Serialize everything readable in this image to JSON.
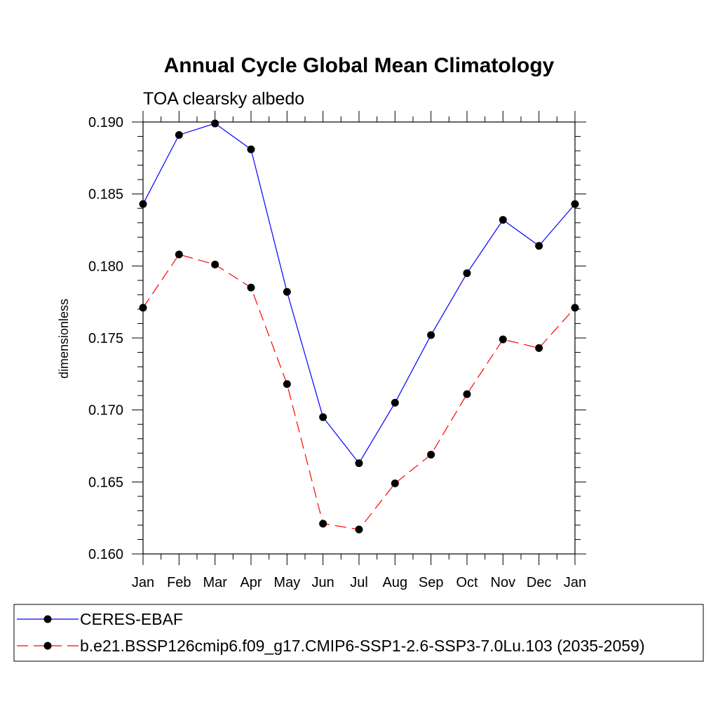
{
  "chart_data": {
    "type": "line",
    "title": "Annual Cycle Global Mean Climatology",
    "subtitle": "TOA clearsky albedo",
    "xlabel": "",
    "ylabel": "dimensionless",
    "categories": [
      "Jan",
      "Feb",
      "Mar",
      "Apr",
      "May",
      "Jun",
      "Jul",
      "Aug",
      "Sep",
      "Oct",
      "Nov",
      "Dec",
      "Jan"
    ],
    "ylim": [
      0.16,
      0.19
    ],
    "yticks": [
      "0.160",
      "0.165",
      "0.170",
      "0.175",
      "0.180",
      "0.185",
      "0.190"
    ],
    "grid": false,
    "legend_position": "bottom",
    "series": [
      {
        "name": "CERES-EBAF",
        "color": "#0000ff",
        "dash": "solid",
        "marker": "filled-circle",
        "values": [
          0.1843,
          0.1891,
          0.1899,
          0.1881,
          0.1782,
          0.1695,
          0.1663,
          0.1705,
          0.1752,
          0.1795,
          0.1832,
          0.1814,
          0.1843
        ]
      },
      {
        "name": "b.e21.BSSP126cmip6.f09_g17.CMIP6-SSP1-2.6-SSP3-7.0Lu.103 (2035-2059)",
        "color": "#ff0000",
        "dash": "dashed",
        "marker": "filled-circle",
        "values": [
          0.1771,
          0.1808,
          0.1801,
          0.1785,
          0.1718,
          0.1621,
          0.1617,
          0.1649,
          0.1669,
          0.1711,
          0.1749,
          0.1743,
          0.1771
        ]
      }
    ]
  }
}
